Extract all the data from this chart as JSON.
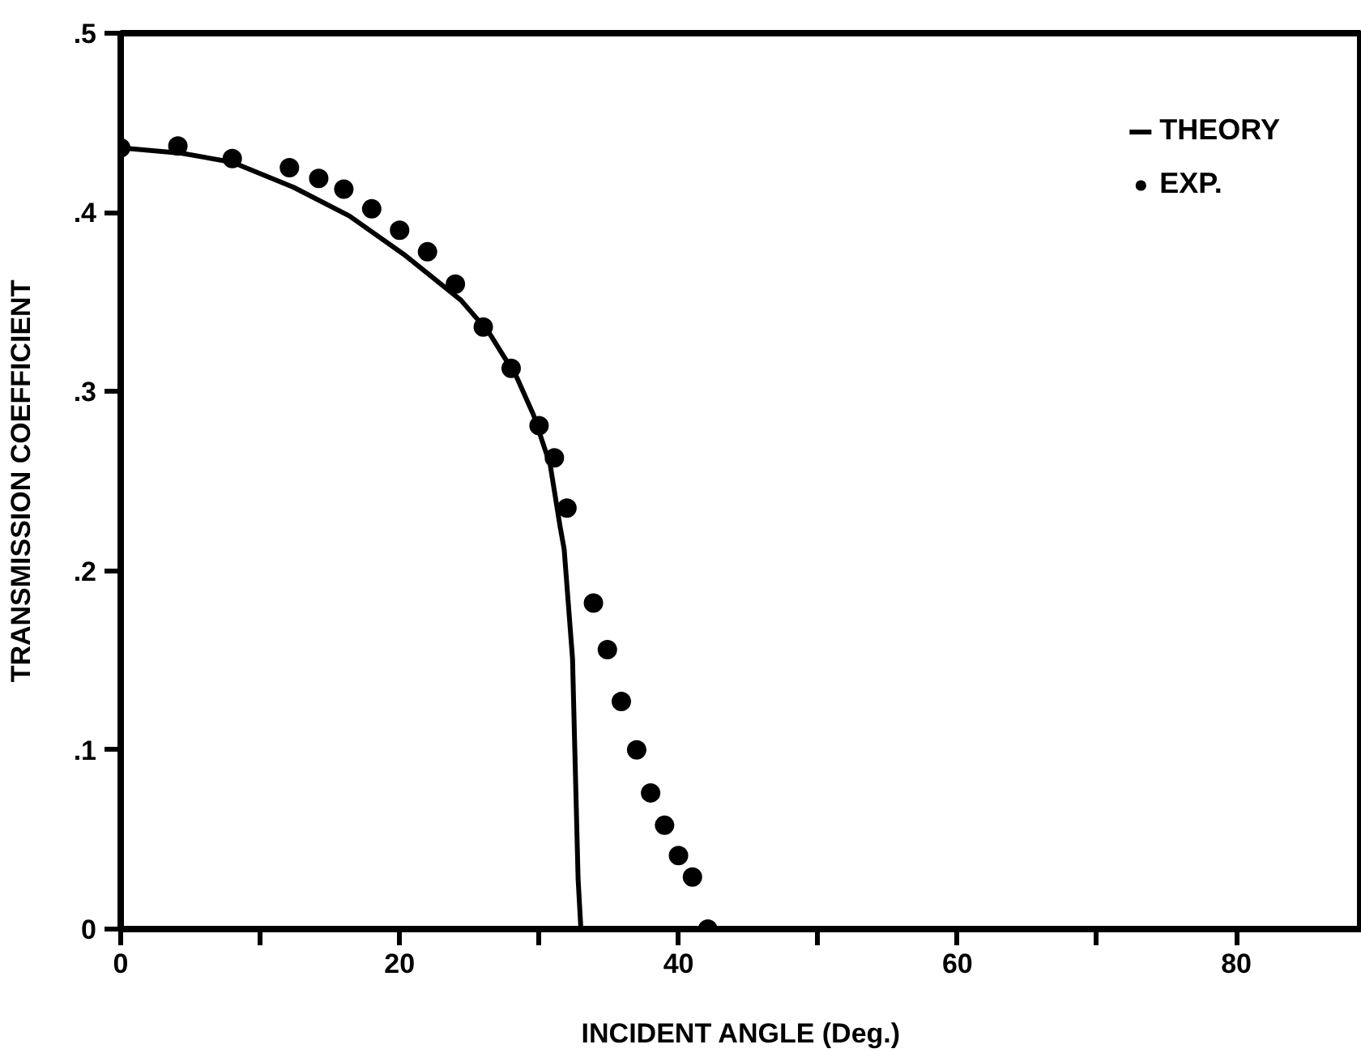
{
  "chart_data": {
    "type": "scatter",
    "xlabel": "INCIDENT ANGLE (Deg.)",
    "ylabel": "TRANSMISSION COEFFICIENT",
    "xlim": [
      0,
      89
    ],
    "ylim": [
      0,
      0.5
    ],
    "xticks": [
      0,
      {
        "value": 10,
        "label": null
      },
      20,
      {
        "value": 30,
        "label": null
      },
      40,
      {
        "value": 50,
        "label": null
      },
      60,
      {
        "value": 70,
        "label": null
      },
      80
    ],
    "yticks": [
      {
        "value": 0,
        "label": "0"
      },
      {
        "value": 0.1,
        "label": ".1"
      },
      {
        "value": 0.2,
        "label": ".2"
      },
      {
        "value": 0.3,
        "label": ".3"
      },
      {
        "value": 0.4,
        "label": ".4"
      },
      {
        "value": 0.5,
        "label": ".5"
      }
    ],
    "grid": false,
    "legend": "top right",
    "series": [
      {
        "name": "THEORY",
        "type": "line",
        "color": "#000000",
        "line_style": "solid",
        "marker": "none",
        "x": [
          0,
          4.4,
          8,
          12.4,
          16.4,
          20.4,
          24.4,
          26.4,
          28.4,
          29.6,
          30.8,
          31.5,
          31.8,
          32.4,
          32.6,
          32.8,
          33.0
        ],
        "values": [
          0.436,
          0.433,
          0.428,
          0.414,
          0.398,
          0.376,
          0.351,
          0.333,
          0.308,
          0.287,
          0.259,
          0.225,
          0.212,
          0.151,
          0.089,
          0.028,
          0
        ]
      },
      {
        "name": "EXP.",
        "color": "#000000",
        "marker": "circle",
        "x": [
          0,
          4.1,
          8,
          12.1,
          14.2,
          16,
          18,
          20,
          22,
          24,
          26,
          28,
          30,
          31.1,
          32,
          33.9,
          34.9,
          35.9,
          37,
          38,
          39,
          40,
          41,
          42.1
        ],
        "values": [
          0.436,
          0.437,
          0.43,
          0.425,
          0.419,
          0.413,
          0.402,
          0.39,
          0.378,
          0.36,
          0.336,
          0.313,
          0.281,
          0.263,
          0.235,
          0.182,
          0.156,
          0.127,
          0.1,
          0.076,
          0.058,
          0.041,
          0.029,
          0
        ]
      }
    ]
  }
}
